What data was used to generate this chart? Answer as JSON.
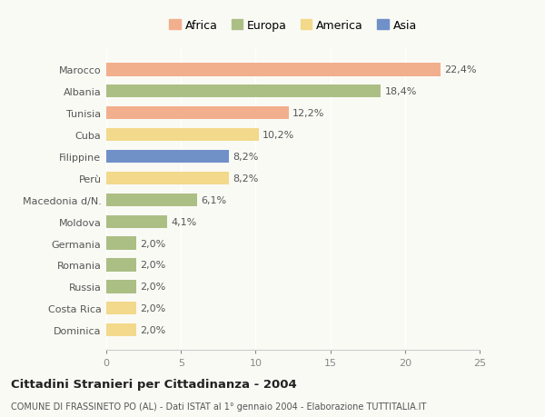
{
  "categories": [
    "Marocco",
    "Albania",
    "Tunisia",
    "Cuba",
    "Filippine",
    "Perù",
    "Macedonia d/N.",
    "Moldova",
    "Germania",
    "Romania",
    "Russia",
    "Costa Rica",
    "Dominica"
  ],
  "values": [
    22.4,
    18.4,
    12.2,
    10.2,
    8.2,
    8.2,
    6.1,
    4.1,
    2.0,
    2.0,
    2.0,
    2.0,
    2.0
  ],
  "labels": [
    "22,4%",
    "18,4%",
    "12,2%",
    "10,2%",
    "8,2%",
    "8,2%",
    "6,1%",
    "4,1%",
    "2,0%",
    "2,0%",
    "2,0%",
    "2,0%",
    "2,0%"
  ],
  "continents": [
    "Africa",
    "Europa",
    "Africa",
    "America",
    "Asia",
    "America",
    "Europa",
    "Europa",
    "Europa",
    "Europa",
    "Europa",
    "America",
    "America"
  ],
  "colors": {
    "Africa": "#F2AF8D",
    "Europa": "#ABBF85",
    "America": "#F2D98B",
    "Asia": "#7090C8"
  },
  "legend_order": [
    "Africa",
    "Europa",
    "America",
    "Asia"
  ],
  "legend_colors": [
    "#F2AF8D",
    "#ABBF85",
    "#F2D98B",
    "#7090C8"
  ],
  "xlim": [
    0,
    25
  ],
  "xticks": [
    0,
    5,
    10,
    15,
    20,
    25
  ],
  "title": "Cittadini Stranieri per Cittadinanza - 2004",
  "subtitle": "COMUNE DI FRASSINETO PO (AL) - Dati ISTAT al 1° gennaio 2004 - Elaborazione TUTTITALIA.IT",
  "bg_color": "#FAFAF5",
  "bar_height": 0.6,
  "label_fontsize": 8,
  "tick_fontsize": 8,
  "legend_fontsize": 9
}
